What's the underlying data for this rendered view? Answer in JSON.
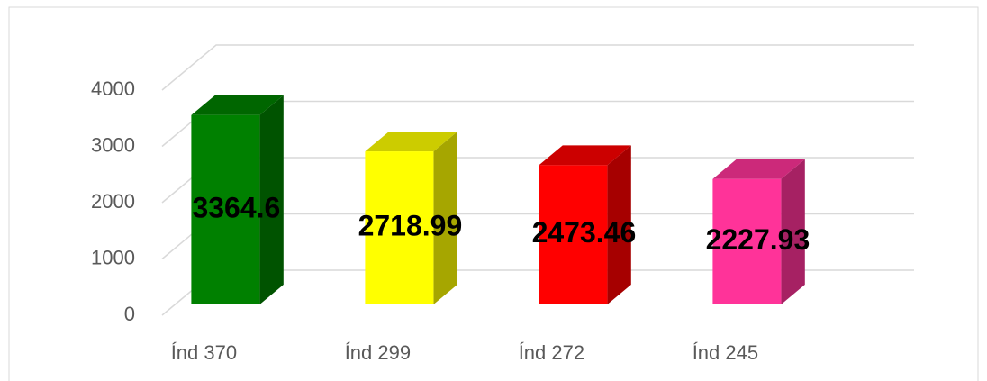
{
  "chart_data": {
    "type": "bar3d",
    "categories": [
      "Índ 370",
      "Índ 299",
      "Índ 272",
      "Índ 245"
    ],
    "values": [
      3364.6,
      2718.99,
      2473.46,
      2227.93
    ],
    "colors": [
      "#008000",
      "#ffff00",
      "#ff0000",
      "#ff3399"
    ],
    "ylim": [
      0,
      4000
    ],
    "yticks": [
      0,
      1000,
      2000,
      3000,
      4000
    ],
    "grid": true
  }
}
